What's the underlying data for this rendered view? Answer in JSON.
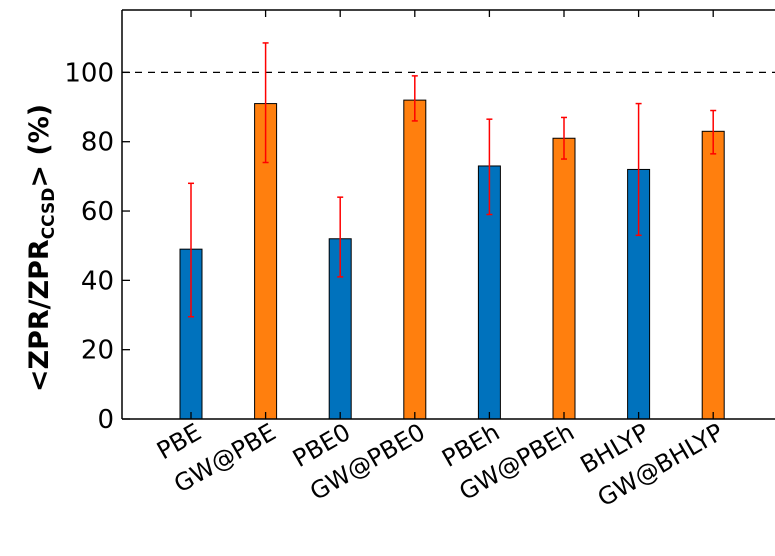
{
  "chart_data": {
    "type": "bar",
    "categories": [
      "PBE",
      "GW@PBE",
      "PBE0",
      "GW@PBE0",
      "PBEh",
      "GW@PBEh",
      "BHLYP",
      "GW@BHLYP"
    ],
    "values": [
      49,
      91,
      52,
      92,
      73,
      81,
      72,
      83
    ],
    "error_low": [
      29.5,
      74,
      41,
      86,
      59,
      75,
      53,
      76.5
    ],
    "error_high": [
      68,
      108.5,
      64,
      99,
      86.5,
      87,
      91,
      89
    ],
    "bar_colors": [
      "#0072BD",
      "#FF7F0E",
      "#0072BD",
      "#FF7F0E",
      "#0072BD",
      "#FF7F0E",
      "#0072BD",
      "#FF7F0E"
    ],
    "error_color": "#FF0000",
    "reference_line": 100,
    "ylim": [
      0,
      118
    ],
    "yticks": [
      "0",
      "20",
      "40",
      "60",
      "80",
      "100"
    ],
    "ylabel": {
      "prefix": "<ZPR/ZPR",
      "subscript": "CCSD",
      "suffix": "> (%)"
    },
    "xlabel": "",
    "grid": false
  }
}
